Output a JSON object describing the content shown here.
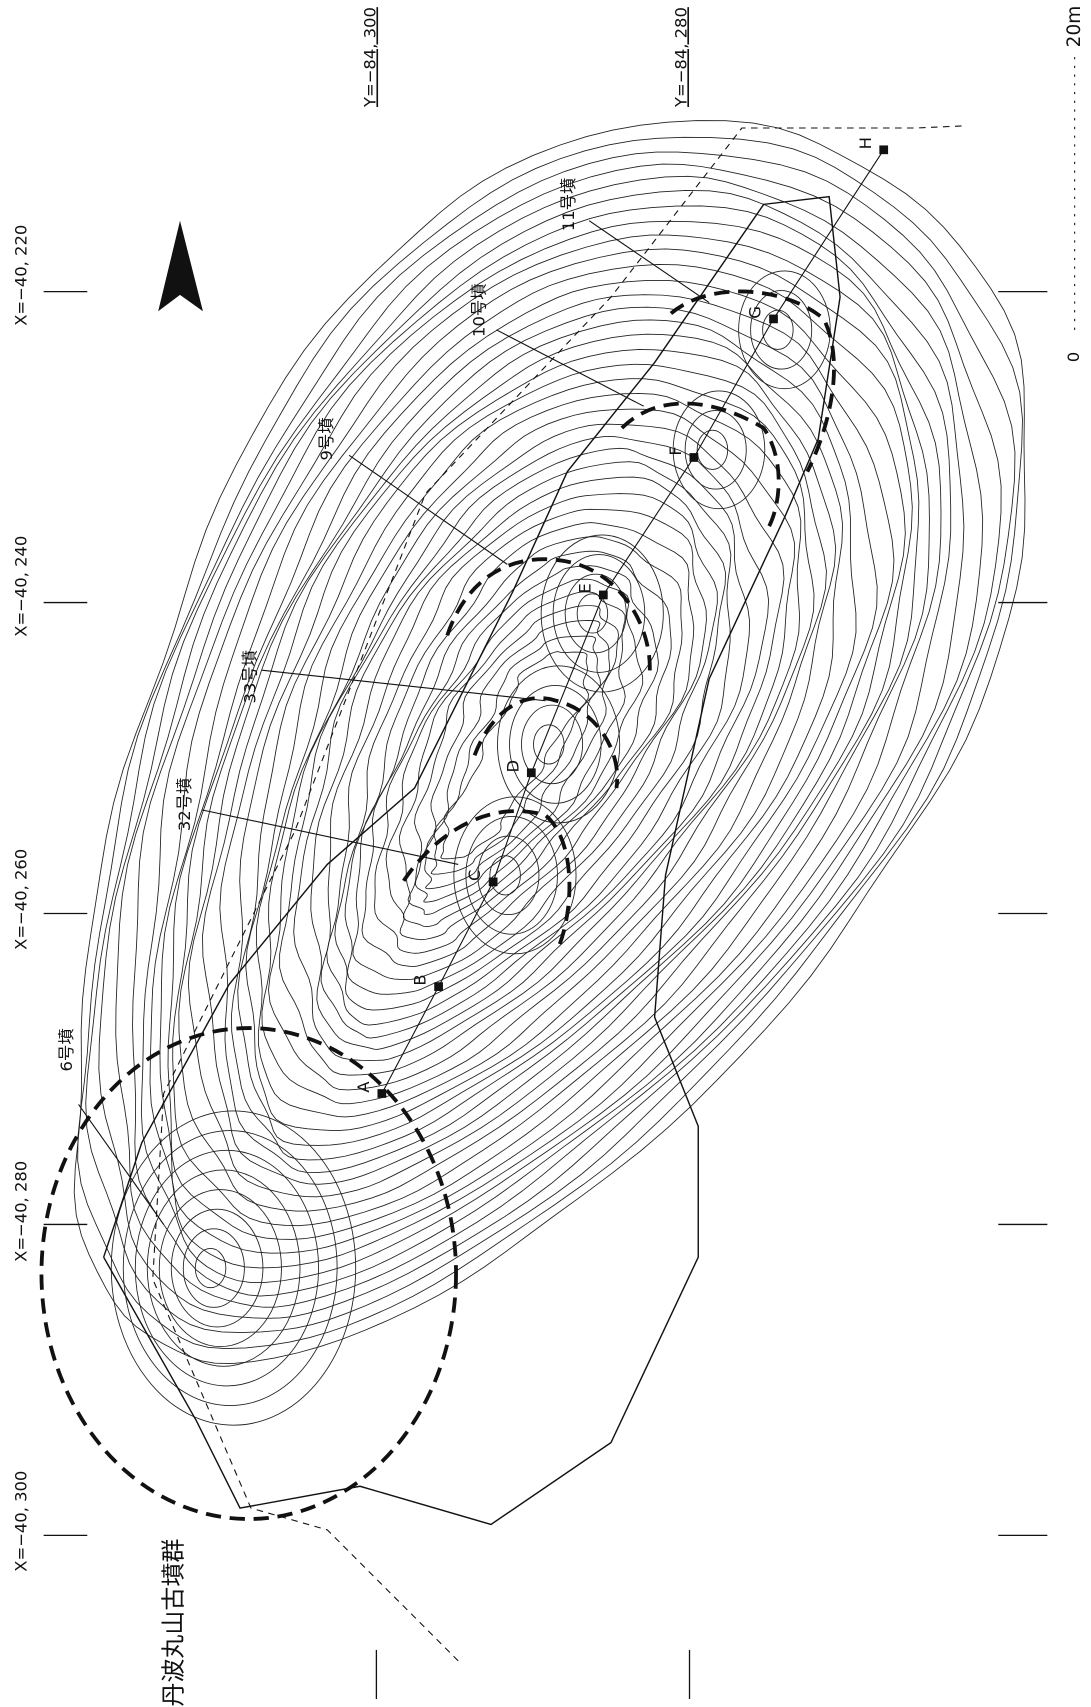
{
  "title": "丹波丸山古墳群",
  "grid_labels": {
    "x": [
      "X=−40, 220",
      "X=−40, 240",
      "X=−40, 260",
      "X=−40, 280",
      "X=−40, 300"
    ],
    "y": [
      "Y=−84, 300",
      "Y=−84, 280"
    ]
  },
  "scale": {
    "zero": "0",
    "max": "20m"
  },
  "mounds": [
    "6号墳",
    "32号墳",
    "33号墳",
    "9号墳",
    "10号墳",
    "11号墳"
  ],
  "points": [
    "A",
    "B",
    "C",
    "D",
    "E",
    "F",
    "G",
    "H"
  ]
}
